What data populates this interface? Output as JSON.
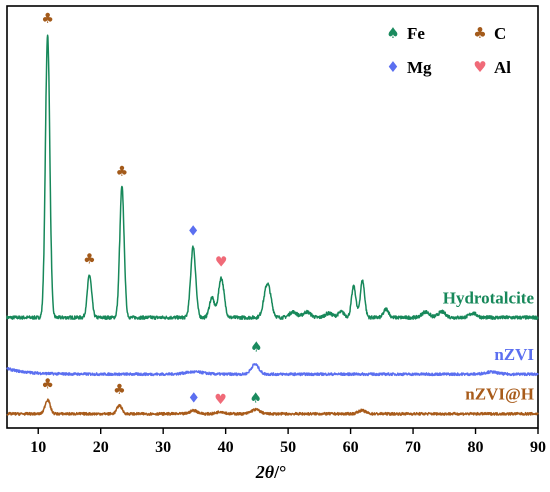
{
  "chart_data": {
    "type": "line",
    "xlabel_italic": "2θ",
    "xlabel_unit": "/°",
    "xlim": [
      5,
      90
    ],
    "xticks": [
      10,
      20,
      30,
      40,
      50,
      60,
      70,
      80,
      90
    ],
    "y_ticks_shown": false,
    "grid": false,
    "legend_position": "top-right",
    "legend": [
      {
        "symbol": "spade",
        "label": "Fe",
        "color": "#1a8a5e"
      },
      {
        "symbol": "club",
        "label": "C",
        "color": "#a35a1a"
      },
      {
        "symbol": "diamond",
        "label": "Mg",
        "color": "#5b6ff0"
      },
      {
        "symbol": "heart",
        "label": "Al",
        "color": "#f06a78"
      }
    ],
    "series": [
      {
        "name": "Hydrotalcite",
        "color": "#17885a",
        "baseline": 0,
        "noise": 1.2,
        "peaks": [
          {
            "x": 11.5,
            "h": 100,
            "w": 0.35
          },
          {
            "x": 18.2,
            "h": 15,
            "w": 0.35
          },
          {
            "x": 23.4,
            "h": 46,
            "w": 0.35
          },
          {
            "x": 34.8,
            "h": 25,
            "w": 0.4
          },
          {
            "x": 37.8,
            "h": 7,
            "w": 0.4
          },
          {
            "x": 39.3,
            "h": 14,
            "w": 0.45
          },
          {
            "x": 46.7,
            "h": 12,
            "w": 0.55
          },
          {
            "x": 50.8,
            "h": 2,
            "w": 0.6
          },
          {
            "x": 53.0,
            "h": 2,
            "w": 0.6
          },
          {
            "x": 56.5,
            "h": 1.5,
            "w": 0.6
          },
          {
            "x": 58.5,
            "h": 2,
            "w": 0.5
          },
          {
            "x": 60.5,
            "h": 11,
            "w": 0.35
          },
          {
            "x": 61.9,
            "h": 13,
            "w": 0.35
          },
          {
            "x": 65.7,
            "h": 3,
            "w": 0.4
          },
          {
            "x": 72.0,
            "h": 2,
            "w": 0.6
          },
          {
            "x": 74.6,
            "h": 2,
            "w": 0.6
          },
          {
            "x": 79.6,
            "h": 1.5,
            "w": 0.6
          }
        ]
      },
      {
        "name": "nZVI",
        "color": "#5b6ff0",
        "baseline": -20,
        "noise": 0.9,
        "start_bump": 2,
        "peaks": [
          {
            "x": 35.0,
            "h": 0.8,
            "w": 1.5
          },
          {
            "x": 44.7,
            "h": 3.5,
            "w": 0.6
          },
          {
            "x": 82.5,
            "h": 0.8,
            "w": 1.0
          }
        ]
      },
      {
        "name": "nZVI@H",
        "color": "#a85b1a",
        "baseline": -34,
        "noise": 0.9,
        "peaks": [
          {
            "x": 11.5,
            "h": 5,
            "w": 0.4
          },
          {
            "x": 23.0,
            "h": 3,
            "w": 0.4
          },
          {
            "x": 34.9,
            "h": 1.2,
            "w": 0.6
          },
          {
            "x": 39.2,
            "h": 0.8,
            "w": 0.6
          },
          {
            "x": 44.8,
            "h": 1.5,
            "w": 0.7
          },
          {
            "x": 61.8,
            "h": 1.2,
            "w": 0.6
          }
        ]
      }
    ],
    "markers": [
      {
        "symbol": "club",
        "x": 11.5,
        "y": 104,
        "color": "#a35a1a"
      },
      {
        "symbol": "club",
        "x": 18.2,
        "y": 19,
        "color": "#a35a1a"
      },
      {
        "symbol": "club",
        "x": 23.4,
        "y": 50,
        "color": "#a35a1a"
      },
      {
        "symbol": "diamond",
        "x": 34.8,
        "y": 29,
        "color": "#5b6ff0"
      },
      {
        "symbol": "heart",
        "x": 39.3,
        "y": 18,
        "color": "#f06a78"
      },
      {
        "symbol": "spade",
        "x": 44.9,
        "y": -12,
        "color": "#1a8a5e"
      },
      {
        "symbol": "club",
        "x": 11.5,
        "y": -25,
        "color": "#a35a1a"
      },
      {
        "symbol": "club",
        "x": 23.0,
        "y": -27,
        "color": "#a35a1a"
      },
      {
        "symbol": "diamond",
        "x": 34.9,
        "y": -30,
        "color": "#5b6ff0"
      },
      {
        "symbol": "heart",
        "x": 39.2,
        "y": -30.5,
        "color": "#f06a78"
      },
      {
        "symbol": "spade",
        "x": 44.8,
        "y": -30,
        "color": "#1a8a5e"
      }
    ],
    "ylim": [
      -39,
      110
    ]
  }
}
